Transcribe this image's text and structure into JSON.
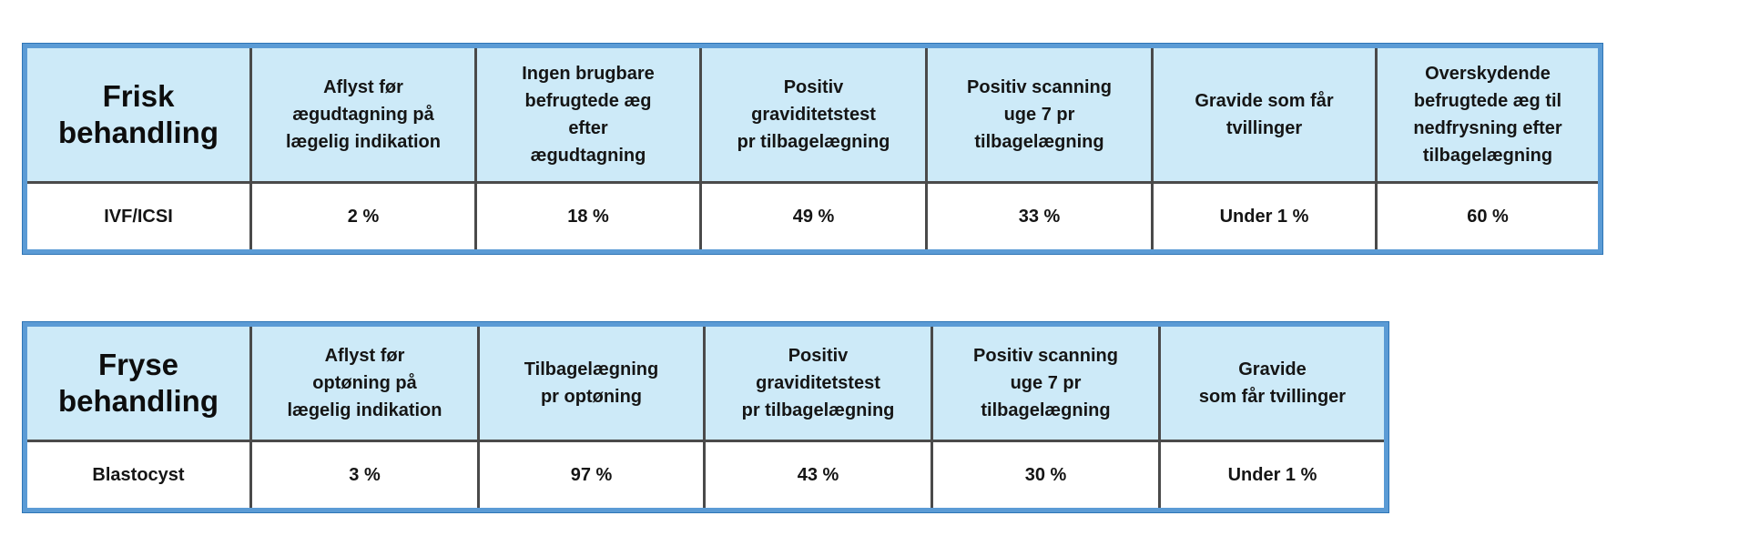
{
  "fresh_table": {
    "corner_label": "Frisk\nbehandling",
    "headers": [
      "Aflyst før\nægudtagning på\nlægelig indikation",
      "Ingen brugbare\nbefrugtede æg\nefter\nægudtagning",
      "Positiv\ngraviditetstest\npr tilbagelægning",
      "Positiv scanning\nuge 7 pr\ntilbagelægning",
      "Gravide som får\ntvillinger",
      "Overskydende\nbefrugtede æg til\nnedfrysning efter\ntilbagelægning"
    ],
    "row_label": "IVF/ICSI",
    "values": [
      "2 %",
      "18 %",
      "49 %",
      "33 %",
      "Under 1 %",
      "60 %"
    ]
  },
  "frozen_table": {
    "corner_label": "Fryse\nbehandling",
    "headers": [
      "Aflyst før\noptøning på\nlægelig indikation",
      "Tilbagelægning\npr optøning",
      "Positiv\ngraviditetstest\npr tilbagelægning",
      "Positiv scanning\nuge 7 pr\ntilbagelægning",
      "Gravide\nsom får tvillinger"
    ],
    "row_label": "Blastocyst",
    "values": [
      "3 %",
      "97 %",
      "43 %",
      "30 %",
      "Under 1 %"
    ]
  }
}
